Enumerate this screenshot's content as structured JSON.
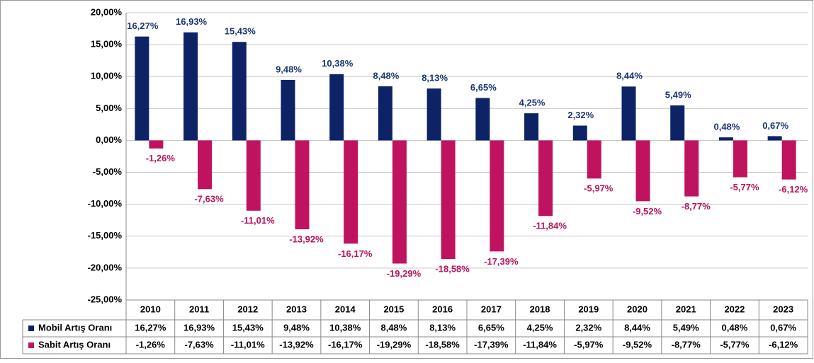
{
  "chart_data": {
    "type": "bar",
    "categories": [
      "2010",
      "2011",
      "2012",
      "2013",
      "2014",
      "2015",
      "2016",
      "2017",
      "2018",
      "2019",
      "2020",
      "2021",
      "2022",
      "2023"
    ],
    "series": [
      {
        "name": "Mobil Artış Oranı",
        "color": "#0d2366",
        "values": [
          16.27,
          16.93,
          15.43,
          9.48,
          10.38,
          8.48,
          8.13,
          6.65,
          4.25,
          2.32,
          8.44,
          5.49,
          0.48,
          0.67
        ],
        "value_labels": [
          "16,27%",
          "16,93%",
          "15,43%",
          "9,48%",
          "10,38%",
          "8,48%",
          "8,13%",
          "6,65%",
          "4,25%",
          "2,32%",
          "8,44%",
          "5,49%",
          "0,48%",
          "0,67%"
        ]
      },
      {
        "name": "Sabit Artış Oranı",
        "color": "#c0135f",
        "values": [
          -1.26,
          -7.63,
          -11.01,
          -13.92,
          -16.17,
          -19.29,
          -18.58,
          -17.39,
          -11.84,
          -5.97,
          -9.52,
          -8.77,
          -5.77,
          -6.12
        ],
        "value_labels": [
          "-1,26%",
          "-7,63%",
          "-11,01%",
          "-13,92%",
          "-16,17%",
          "-19,29%",
          "-18,58%",
          "-17,39%",
          "-11,84%",
          "-5,97%",
          "-9,52%",
          "-8,77%",
          "-5,77%",
          "-6,12%"
        ]
      }
    ],
    "ylim": [
      -25,
      20
    ],
    "yticks": [
      {
        "value": -25,
        "label": "-25,00%"
      },
      {
        "value": -20,
        "label": "-20,00%"
      },
      {
        "value": -15,
        "label": "-15,00%"
      },
      {
        "value": -10,
        "label": "-10,00%"
      },
      {
        "value": -5,
        "label": "-5,00%"
      },
      {
        "value": 0,
        "label": "0,00%"
      },
      {
        "value": 5,
        "label": "5,00%"
      },
      {
        "value": 10,
        "label": "10,00%"
      },
      {
        "value": 15,
        "label": "15,00%"
      },
      {
        "value": 20,
        "label": "20,00%"
      }
    ],
    "grid": true,
    "data_table": true
  }
}
